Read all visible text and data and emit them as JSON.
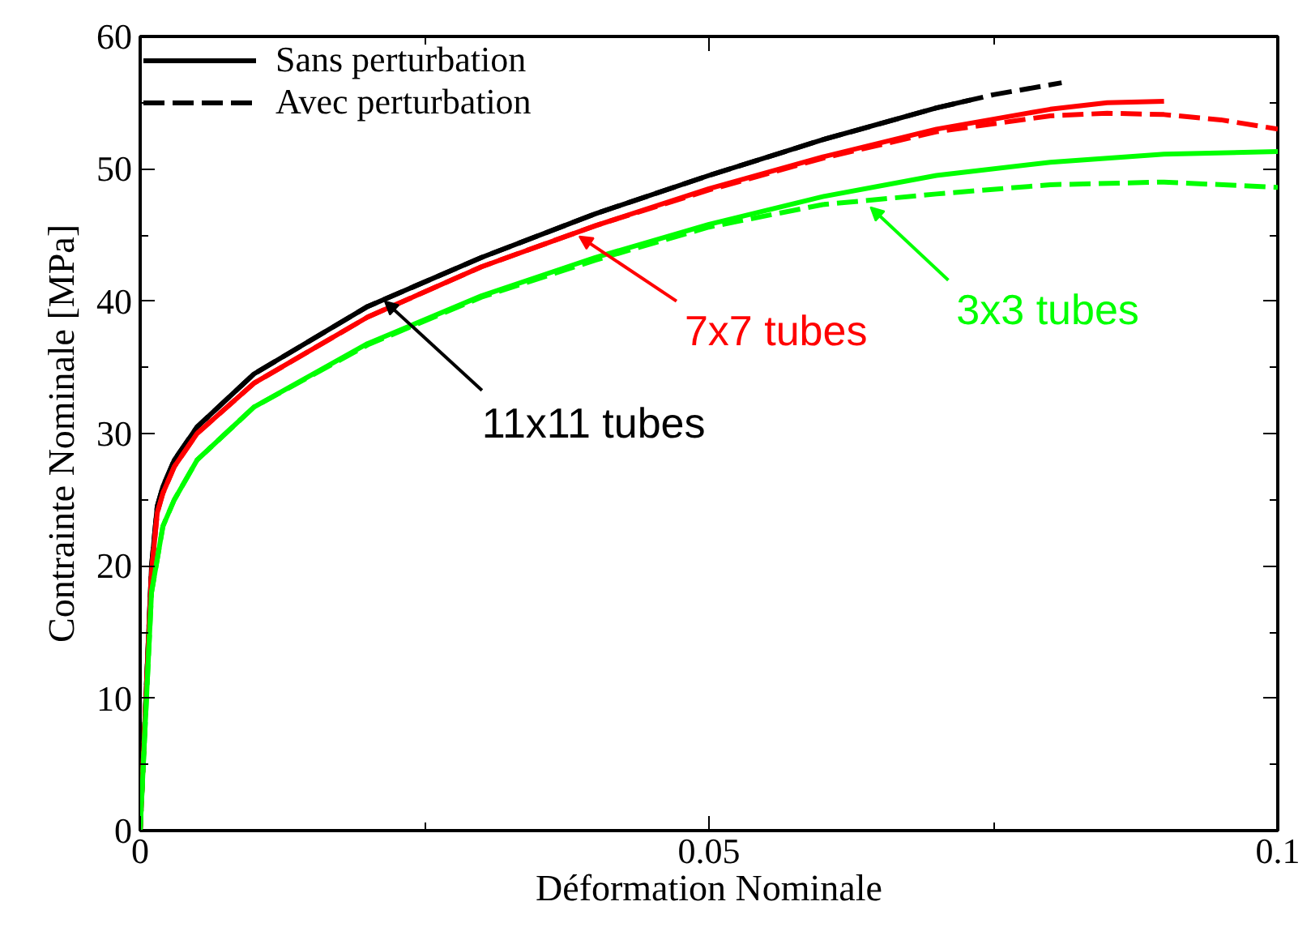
{
  "chart_data": {
    "type": "line",
    "xlabel": "Déformation Nominale",
    "ylabel": "Contrainte Nominale [MPa]",
    "xlim": [
      0,
      0.1
    ],
    "ylim": [
      0,
      60
    ],
    "xticks": [
      0,
      {
        "value": 0.025,
        "label": null
      },
      0.05,
      {
        "value": 0.075,
        "label": null
      },
      0.1
    ],
    "yticks": [
      0,
      {
        "value": 5,
        "label": null
      },
      10,
      {
        "value": 15,
        "label": null
      },
      20,
      {
        "value": 25,
        "label": null
      },
      30,
      {
        "value": 35,
        "label": null
      },
      40,
      {
        "value": 45,
        "label": null
      },
      50,
      {
        "value": 55,
        "label": null
      },
      60
    ],
    "grid": false,
    "legend": "top left",
    "series": [
      {
        "name": "Sans perturbation",
        "color": "#000000",
        "line_style": "solid",
        "x": [
          0,
          0.001,
          0.0015,
          0.002,
          0.003,
          0.005,
          0.01,
          0.02,
          0.03,
          0.04,
          0.05,
          0.06,
          0.07,
          0.073
        ],
        "values": [
          0,
          20,
          24.5,
          26,
          28,
          30.5,
          34.5,
          39.6,
          43.3,
          46.6,
          49.5,
          52.2,
          54.6,
          55.2
        ]
      },
      {
        "name": "Avec perturbation",
        "color": "#000000",
        "line_style": "dashed",
        "x": [
          0,
          0.001,
          0.0015,
          0.002,
          0.003,
          0.005,
          0.01,
          0.02,
          0.03,
          0.04,
          0.05,
          0.06,
          0.07,
          0.075,
          0.081
        ],
        "values": [
          0,
          20,
          24.5,
          26,
          28,
          30.5,
          34.5,
          39.6,
          43.3,
          46.6,
          49.5,
          52.2,
          54.6,
          55.6,
          56.5
        ]
      },
      {
        "color": "#ff0000",
        "line_style": "solid",
        "x": [
          0,
          0.001,
          0.0015,
          0.002,
          0.003,
          0.005,
          0.01,
          0.02,
          0.03,
          0.04,
          0.05,
          0.06,
          0.07,
          0.08,
          0.085,
          0.09
        ],
        "values": [
          0,
          19.5,
          24,
          25.5,
          27.5,
          30,
          33.8,
          38.8,
          42.6,
          45.7,
          48.5,
          50.9,
          53,
          54.5,
          55,
          55.1
        ]
      },
      {
        "color": "#ff0000",
        "line_style": "dashed",
        "x": [
          0,
          0.001,
          0.0015,
          0.002,
          0.003,
          0.005,
          0.01,
          0.02,
          0.03,
          0.04,
          0.05,
          0.06,
          0.07,
          0.08,
          0.085,
          0.09,
          0.095,
          0.1
        ],
        "values": [
          0,
          19.5,
          24,
          25.5,
          27.5,
          30,
          33.8,
          38.8,
          42.6,
          45.7,
          48.4,
          50.8,
          52.8,
          54,
          54.2,
          54.1,
          53.7,
          53
        ]
      },
      {
        "color": "#00ff00",
        "line_style": "solid",
        "x": [
          0,
          0.001,
          0.002,
          0.003,
          0.005,
          0.01,
          0.02,
          0.03,
          0.04,
          0.05,
          0.06,
          0.07,
          0.08,
          0.09,
          0.1
        ],
        "values": [
          0,
          18,
          23,
          25,
          28,
          32,
          36.8,
          40.4,
          43.3,
          45.8,
          47.9,
          49.5,
          50.5,
          51.1,
          51.3
        ]
      },
      {
        "color": "#00ff00",
        "line_style": "dashed",
        "x": [
          0,
          0.001,
          0.002,
          0.003,
          0.005,
          0.01,
          0.02,
          0.03,
          0.04,
          0.05,
          0.06,
          0.07,
          0.08,
          0.09,
          0.1
        ],
        "values": [
          0,
          18,
          23,
          25,
          28,
          32,
          36.7,
          40.3,
          43.1,
          45.6,
          47.3,
          48.1,
          48.8,
          49,
          48.6
        ]
      }
    ],
    "annotations": [
      {
        "text": "11x11 tubes",
        "x": 0.0215,
        "y": 40.0
      },
      {
        "text": "7x7 tubes",
        "x": 0.0386,
        "y": 44.9
      },
      {
        "text": "3x3 tubes",
        "x": 0.0642,
        "y": 47.1
      }
    ]
  }
}
